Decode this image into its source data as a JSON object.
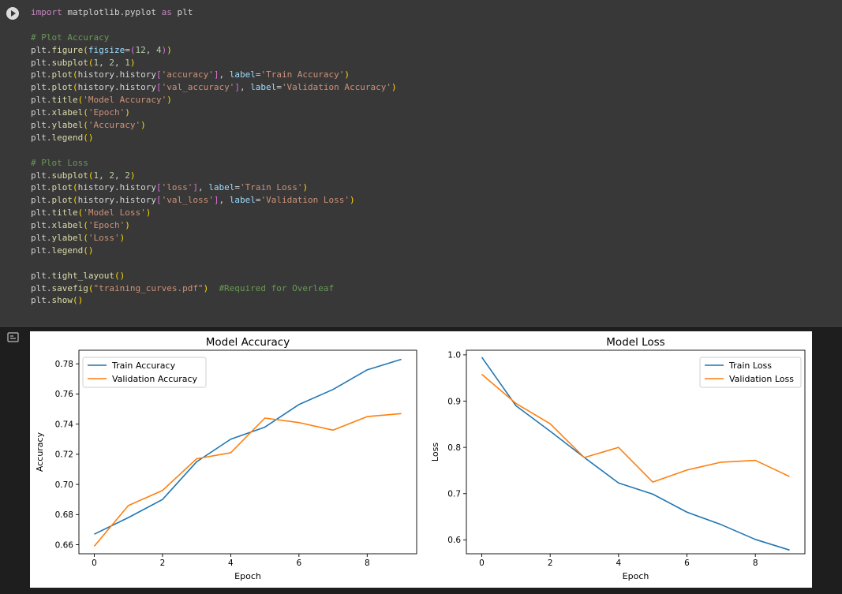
{
  "code_cell": {
    "run_button_icon": "play-icon",
    "lines": [
      [
        [
          "kw",
          "import"
        ],
        [
          "plain",
          " matplotlib.pyplot "
        ],
        [
          "kw",
          "as"
        ],
        [
          "plain",
          " plt"
        ]
      ],
      [],
      [
        [
          "com",
          "# Plot Accuracy"
        ]
      ],
      [
        [
          "plain",
          "plt."
        ],
        [
          "fn",
          "figure"
        ],
        [
          "p1",
          "("
        ],
        [
          "var",
          "figsize"
        ],
        [
          "plain",
          "="
        ],
        [
          "p2",
          "("
        ],
        [
          "num",
          "12"
        ],
        [
          "plain",
          ", "
        ],
        [
          "num",
          "4"
        ],
        [
          "p2",
          ")"
        ],
        [
          "p1",
          ")"
        ]
      ],
      [
        [
          "plain",
          "plt."
        ],
        [
          "fn",
          "subplot"
        ],
        [
          "p1",
          "("
        ],
        [
          "num",
          "1"
        ],
        [
          "plain",
          ", "
        ],
        [
          "num",
          "2"
        ],
        [
          "plain",
          ", "
        ],
        [
          "num",
          "1"
        ],
        [
          "p1",
          ")"
        ]
      ],
      [
        [
          "plain",
          "plt."
        ],
        [
          "fn",
          "plot"
        ],
        [
          "p1",
          "("
        ],
        [
          "plain",
          "history.history"
        ],
        [
          "p2",
          "["
        ],
        [
          "str",
          "'accuracy'"
        ],
        [
          "p2",
          "]"
        ],
        [
          "plain",
          ", "
        ],
        [
          "var",
          "label"
        ],
        [
          "plain",
          "="
        ],
        [
          "str",
          "'Train Accuracy'"
        ],
        [
          "p1",
          ")"
        ]
      ],
      [
        [
          "plain",
          "plt."
        ],
        [
          "fn",
          "plot"
        ],
        [
          "p1",
          "("
        ],
        [
          "plain",
          "history.history"
        ],
        [
          "p2",
          "["
        ],
        [
          "str",
          "'val_accuracy'"
        ],
        [
          "p2",
          "]"
        ],
        [
          "plain",
          ", "
        ],
        [
          "var",
          "label"
        ],
        [
          "plain",
          "="
        ],
        [
          "str",
          "'Validation Accuracy'"
        ],
        [
          "p1",
          ")"
        ]
      ],
      [
        [
          "plain",
          "plt."
        ],
        [
          "fn",
          "title"
        ],
        [
          "p1",
          "("
        ],
        [
          "str",
          "'Model Accuracy'"
        ],
        [
          "p1",
          ")"
        ]
      ],
      [
        [
          "plain",
          "plt."
        ],
        [
          "fn",
          "xlabel"
        ],
        [
          "p1",
          "("
        ],
        [
          "str",
          "'Epoch'"
        ],
        [
          "p1",
          ")"
        ]
      ],
      [
        [
          "plain",
          "plt."
        ],
        [
          "fn",
          "ylabel"
        ],
        [
          "p1",
          "("
        ],
        [
          "str",
          "'Accuracy'"
        ],
        [
          "p1",
          ")"
        ]
      ],
      [
        [
          "plain",
          "plt."
        ],
        [
          "fn",
          "legend"
        ],
        [
          "p1",
          "()"
        ]
      ],
      [],
      [
        [
          "com",
          "# Plot Loss"
        ]
      ],
      [
        [
          "plain",
          "plt."
        ],
        [
          "fn",
          "subplot"
        ],
        [
          "p1",
          "("
        ],
        [
          "num",
          "1"
        ],
        [
          "plain",
          ", "
        ],
        [
          "num",
          "2"
        ],
        [
          "plain",
          ", "
        ],
        [
          "num",
          "2"
        ],
        [
          "p1",
          ")"
        ]
      ],
      [
        [
          "plain",
          "plt."
        ],
        [
          "fn",
          "plot"
        ],
        [
          "p1",
          "("
        ],
        [
          "plain",
          "history.history"
        ],
        [
          "p2",
          "["
        ],
        [
          "str",
          "'loss'"
        ],
        [
          "p2",
          "]"
        ],
        [
          "plain",
          ", "
        ],
        [
          "var",
          "label"
        ],
        [
          "plain",
          "="
        ],
        [
          "str",
          "'Train Loss'"
        ],
        [
          "p1",
          ")"
        ]
      ],
      [
        [
          "plain",
          "plt."
        ],
        [
          "fn",
          "plot"
        ],
        [
          "p1",
          "("
        ],
        [
          "plain",
          "history.history"
        ],
        [
          "p2",
          "["
        ],
        [
          "str",
          "'val_loss'"
        ],
        [
          "p2",
          "]"
        ],
        [
          "plain",
          ", "
        ],
        [
          "var",
          "label"
        ],
        [
          "plain",
          "="
        ],
        [
          "str",
          "'Validation Loss'"
        ],
        [
          "p1",
          ")"
        ]
      ],
      [
        [
          "plain",
          "plt."
        ],
        [
          "fn",
          "title"
        ],
        [
          "p1",
          "("
        ],
        [
          "str",
          "'Model Loss'"
        ],
        [
          "p1",
          ")"
        ]
      ],
      [
        [
          "plain",
          "plt."
        ],
        [
          "fn",
          "xlabel"
        ],
        [
          "p1",
          "("
        ],
        [
          "str",
          "'Epoch'"
        ],
        [
          "p1",
          ")"
        ]
      ],
      [
        [
          "plain",
          "plt."
        ],
        [
          "fn",
          "ylabel"
        ],
        [
          "p1",
          "("
        ],
        [
          "str",
          "'Loss'"
        ],
        [
          "p1",
          ")"
        ]
      ],
      [
        [
          "plain",
          "plt."
        ],
        [
          "fn",
          "legend"
        ],
        [
          "p1",
          "()"
        ]
      ],
      [],
      [
        [
          "plain",
          "plt."
        ],
        [
          "fn",
          "tight_layout"
        ],
        [
          "p1",
          "()"
        ]
      ],
      [
        [
          "plain",
          "plt."
        ],
        [
          "fn",
          "savefig"
        ],
        [
          "p1",
          "("
        ],
        [
          "str",
          "\"training_curves.pdf\""
        ],
        [
          "p1",
          ")"
        ],
        [
          "plain",
          "  "
        ],
        [
          "com",
          "#Required for Overleaf"
        ]
      ],
      [
        [
          "plain",
          "plt."
        ],
        [
          "fn",
          "show"
        ],
        [
          "p1",
          "()"
        ]
      ]
    ]
  },
  "output_icon": "output-toggle-icon",
  "colors": {
    "train": "#1f77b4",
    "validation": "#ff7f0e"
  },
  "chart_data": [
    {
      "type": "line",
      "title": "Model Accuracy",
      "xlabel": "Epoch",
      "ylabel": "Accuracy",
      "xlim": [
        -0.45,
        9.45
      ],
      "ylim": [
        0.654,
        0.789
      ],
      "xticks": [
        0,
        2,
        4,
        6,
        8
      ],
      "yticks": [
        0.66,
        0.68,
        0.7,
        0.72,
        0.74,
        0.76,
        0.78
      ],
      "ytick_labels": [
        "0.66",
        "0.68",
        "0.70",
        "0.72",
        "0.74",
        "0.76",
        "0.78"
      ],
      "legend": "upper-left",
      "x": [
        0,
        1,
        2,
        3,
        4,
        5,
        6,
        7,
        8,
        9
      ],
      "series": [
        {
          "name": "Train Accuracy",
          "values": [
            0.667,
            0.678,
            0.69,
            0.715,
            0.73,
            0.738,
            0.753,
            0.763,
            0.776,
            0.783
          ]
        },
        {
          "name": "Validation Accuracy",
          "values": [
            0.659,
            0.686,
            0.696,
            0.717,
            0.721,
            0.744,
            0.741,
            0.736,
            0.745,
            0.747
          ]
        }
      ]
    },
    {
      "type": "line",
      "title": "Model Loss",
      "xlabel": "Epoch",
      "ylabel": "Loss",
      "xlim": [
        -0.45,
        9.45
      ],
      "ylim": [
        0.57,
        1.01
      ],
      "xticks": [
        0,
        2,
        4,
        6,
        8
      ],
      "yticks": [
        0.6,
        0.7,
        0.8,
        0.9,
        1.0
      ],
      "ytick_labels": [
        "0.6",
        "0.7",
        "0.8",
        "0.9",
        "1.0"
      ],
      "legend": "upper-right",
      "x": [
        0,
        1,
        2,
        3,
        4,
        5,
        6,
        7,
        8,
        9
      ],
      "series": [
        {
          "name": "Train Loss",
          "values": [
            0.995,
            0.89,
            0.835,
            0.778,
            0.723,
            0.699,
            0.66,
            0.633,
            0.601,
            0.578
          ]
        },
        {
          "name": "Validation Loss",
          "values": [
            0.958,
            0.895,
            0.851,
            0.778,
            0.8,
            0.725,
            0.751,
            0.768,
            0.772,
            0.737
          ]
        }
      ]
    }
  ]
}
